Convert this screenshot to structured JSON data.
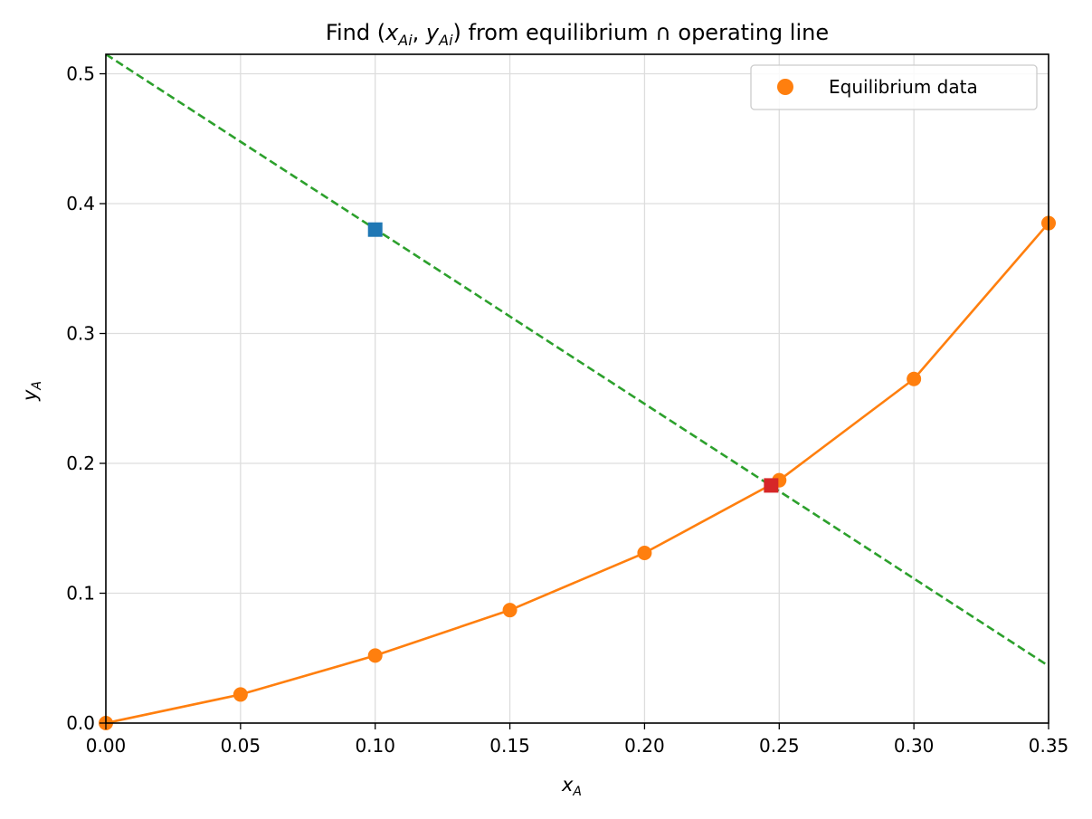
{
  "chart_data": {
    "type": "line",
    "title": {
      "prefix": "Find (",
      "x_var": "x",
      "x_sub": "Ai",
      "separator": ", ",
      "y_var": "y",
      "y_sub": "Ai",
      "suffix": ") from equilibrium ∩ operating line"
    },
    "xlabel": {
      "var": "x",
      "sub": "A"
    },
    "ylabel": {
      "var": "y",
      "sub": "A"
    },
    "xlim": [
      0,
      0.35
    ],
    "ylim": [
      0,
      0.515
    ],
    "x_ticks": [
      "0.00",
      "0.05",
      "0.10",
      "0.15",
      "0.20",
      "0.25",
      "0.30",
      "0.35"
    ],
    "y_ticks": [
      "0.0",
      "0.1",
      "0.2",
      "0.3",
      "0.4",
      "0.5"
    ],
    "grid": true,
    "legend": {
      "position": "top-right",
      "entries": [
        "Equilibrium data"
      ]
    },
    "series": [
      {
        "name": "Equilibrium data",
        "kind": "line-markers",
        "color": "#ff7f0e",
        "x": [
          0.0,
          0.05,
          0.1,
          0.15,
          0.2,
          0.25,
          0.3,
          0.35
        ],
        "y": [
          0.0,
          0.022,
          0.052,
          0.087,
          0.131,
          0.187,
          0.265,
          0.385
        ]
      },
      {
        "kind": "dashed-line",
        "color": "#2ca02c",
        "x": [
          0.0,
          0.35
        ],
        "y": [
          0.515,
          0.044
        ]
      },
      {
        "kind": "square-marker",
        "color": "#1f77b4",
        "x": [
          0.1
        ],
        "y": [
          0.38
        ]
      },
      {
        "kind": "square-marker",
        "color": "#d62728",
        "x": [
          0.247
        ],
        "y": [
          0.183
        ]
      }
    ]
  }
}
